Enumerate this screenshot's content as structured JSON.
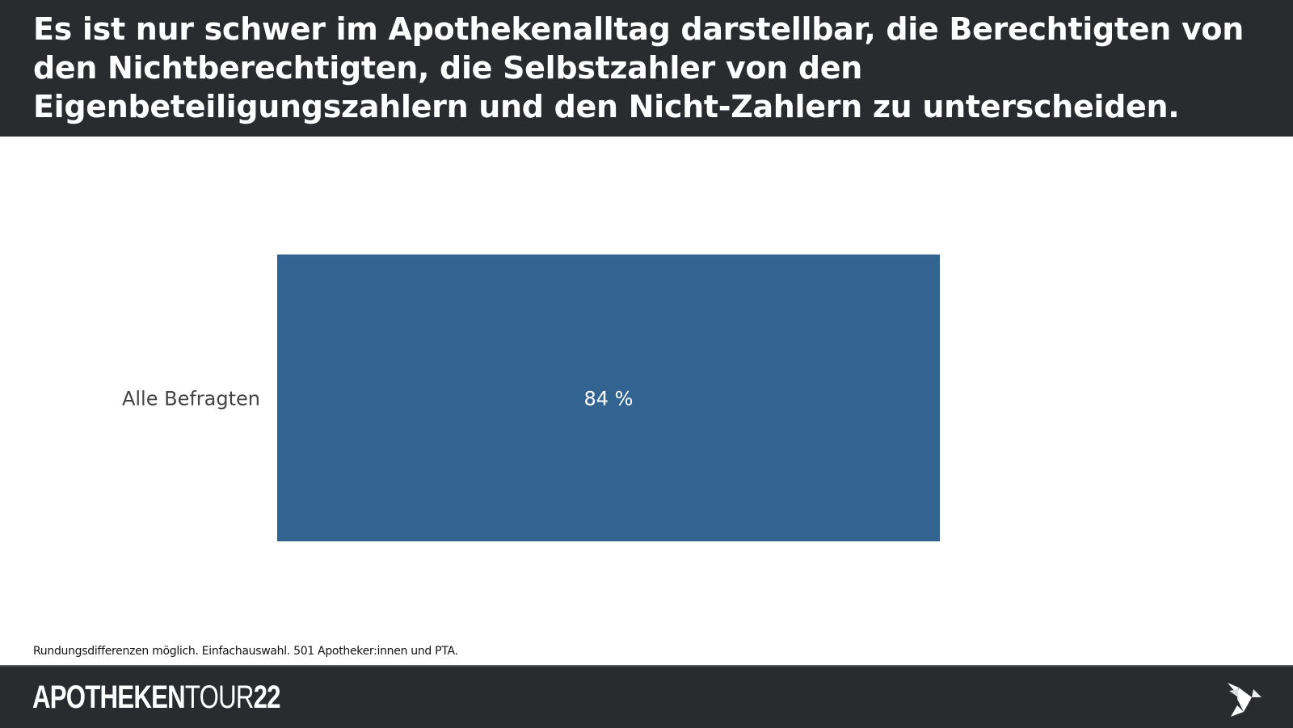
{
  "header": {
    "title": "Es ist nur schwer im Apothekenalltag darstellbar, die Berechtigten von den Nichtberechtigten, die Selbstzahler von den Eigenbeteiligungszahlern und den Nicht-Zahlern zu unterscheiden."
  },
  "chart_data": {
    "type": "bar",
    "orientation": "horizontal",
    "categories": [
      "Alle Befragten"
    ],
    "values": [
      84
    ],
    "value_labels": [
      "84 %"
    ],
    "xlim": [
      0,
      100
    ],
    "color": "#336491",
    "title": "",
    "xlabel": "",
    "ylabel": ""
  },
  "footnote": "Rundungsdifferenzen möglich. Einfachauswahl. 501 Apotheker:innen und PTA.",
  "footer": {
    "logo_bold": "APOTHEKEN",
    "logo_light": "TOUR",
    "logo_num": "22"
  }
}
